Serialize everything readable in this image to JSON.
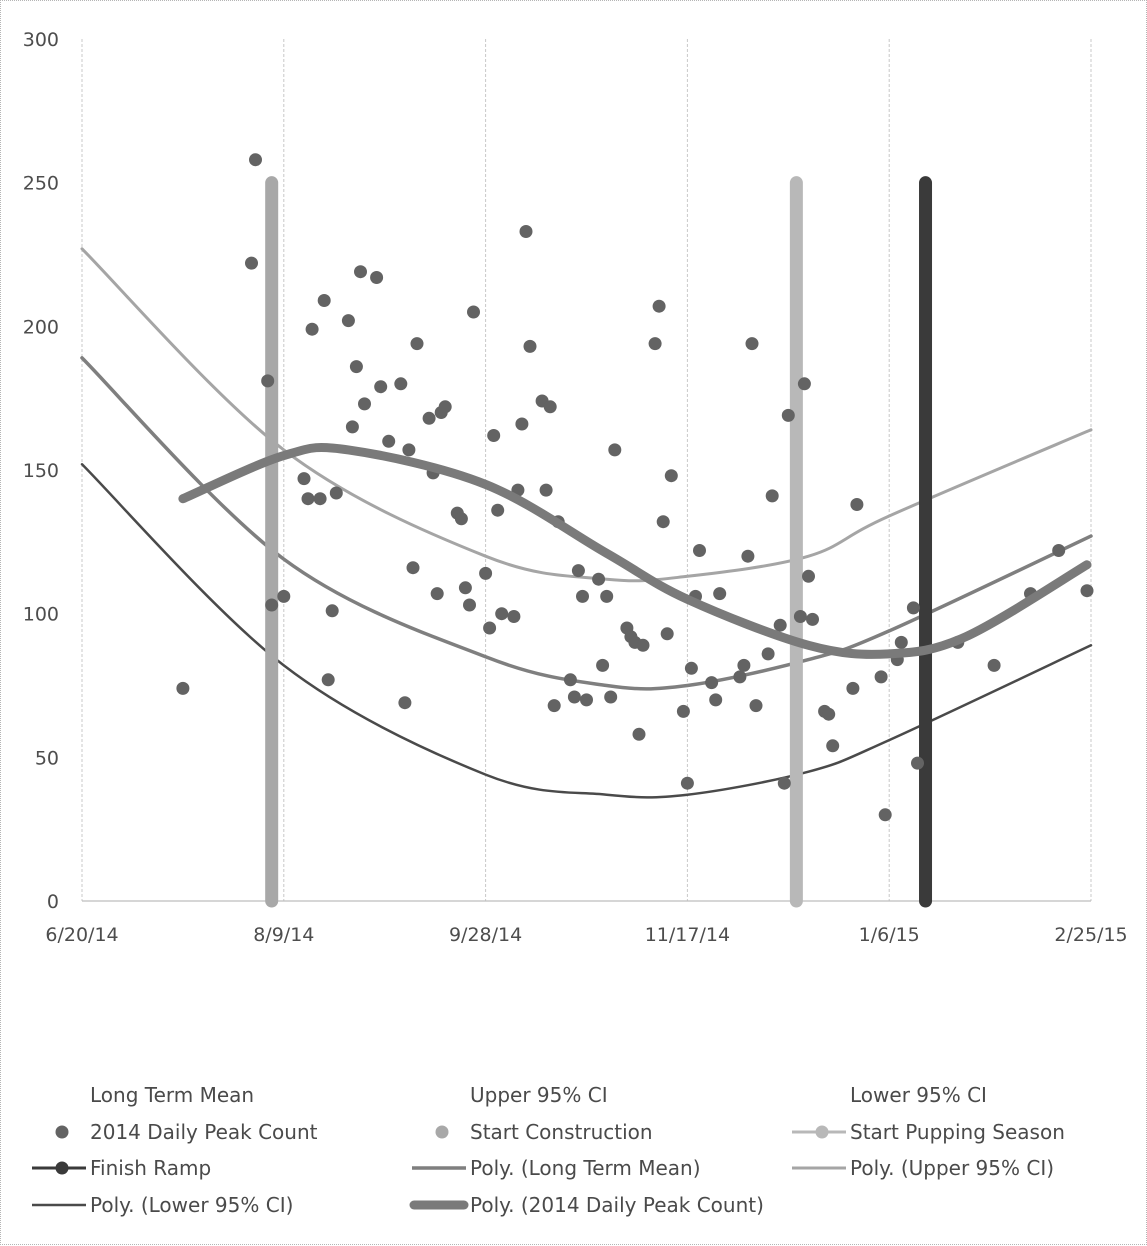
{
  "chart_data": {
    "type": "scatter",
    "title": "",
    "xlabel": "",
    "ylabel": "",
    "x_ticks": [
      "6/20/14",
      "8/9/14",
      "9/28/14",
      "11/17/14",
      "1/6/15",
      "2/25/15"
    ],
    "y_ticks": [
      "0",
      "50",
      "100",
      "150",
      "200",
      "250",
      "300"
    ],
    "xlim": [
      "2014-06-20",
      "2015-02-25"
    ],
    "ylim": [
      0,
      300
    ],
    "grid": "vertical",
    "legend_position": "bottom",
    "colors": {
      "points": "#636363",
      "construction": "#a8a8a8",
      "pupping": "#b8b8b8",
      "ramp": "#3a3a3a",
      "poly_mean": "#7f7f7f",
      "poly_upper": "#a5a5a5",
      "poly_lower": "#4a4a4a",
      "poly_count": "#7a7a7a"
    },
    "series": [
      {
        "name": "2014 Daily Peak Count",
        "kind": "points",
        "points": [
          [
            "2014-07-15",
            74
          ],
          [
            "2014-08-01",
            222
          ],
          [
            "2014-08-02",
            258
          ],
          [
            "2014-08-05",
            181
          ],
          [
            "2014-08-06",
            103
          ],
          [
            "2014-08-09",
            106
          ],
          [
            "2014-08-14",
            147
          ],
          [
            "2014-08-15",
            140
          ],
          [
            "2014-08-16",
            199
          ],
          [
            "2014-08-18",
            140
          ],
          [
            "2014-08-19",
            209
          ],
          [
            "2014-08-20",
            77
          ],
          [
            "2014-08-21",
            101
          ],
          [
            "2014-08-22",
            142
          ],
          [
            "2014-08-25",
            202
          ],
          [
            "2014-08-26",
            165
          ],
          [
            "2014-08-27",
            186
          ],
          [
            "2014-08-28",
            219
          ],
          [
            "2014-08-29",
            173
          ],
          [
            "2014-09-01",
            217
          ],
          [
            "2014-09-02",
            179
          ],
          [
            "2014-09-04",
            160
          ],
          [
            "2014-09-07",
            180
          ],
          [
            "2014-09-08",
            69
          ],
          [
            "2014-09-09",
            157
          ],
          [
            "2014-09-10",
            116
          ],
          [
            "2014-09-11",
            194
          ],
          [
            "2014-09-14",
            168
          ],
          [
            "2014-09-15",
            149
          ],
          [
            "2014-09-16",
            107
          ],
          [
            "2014-09-17",
            170
          ],
          [
            "2014-09-18",
            172
          ],
          [
            "2014-09-21",
            135
          ],
          [
            "2014-09-22",
            133
          ],
          [
            "2014-09-23",
            109
          ],
          [
            "2014-09-24",
            103
          ],
          [
            "2014-09-25",
            205
          ],
          [
            "2014-09-28",
            114
          ],
          [
            "2014-09-29",
            95
          ],
          [
            "2014-09-30",
            162
          ],
          [
            "2014-10-01",
            136
          ],
          [
            "2014-10-02",
            100
          ],
          [
            "2014-10-05",
            99
          ],
          [
            "2014-10-06",
            143
          ],
          [
            "2014-10-07",
            166
          ],
          [
            "2014-10-08",
            233
          ],
          [
            "2014-10-09",
            193
          ],
          [
            "2014-10-12",
            174
          ],
          [
            "2014-10-13",
            143
          ],
          [
            "2014-10-14",
            172
          ],
          [
            "2014-10-15",
            68
          ],
          [
            "2014-10-16",
            132
          ],
          [
            "2014-10-19",
            77
          ],
          [
            "2014-10-20",
            71
          ],
          [
            "2014-10-21",
            115
          ],
          [
            "2014-10-22",
            106
          ],
          [
            "2014-10-23",
            70
          ],
          [
            "2014-10-26",
            112
          ],
          [
            "2014-10-27",
            82
          ],
          [
            "2014-10-28",
            106
          ],
          [
            "2014-10-29",
            71
          ],
          [
            "2014-10-30",
            157
          ],
          [
            "2014-11-02",
            95
          ],
          [
            "2014-11-03",
            92
          ],
          [
            "2014-11-04",
            90
          ],
          [
            "2014-11-05",
            58
          ],
          [
            "2014-11-06",
            89
          ],
          [
            "2014-11-09",
            194
          ],
          [
            "2014-11-10",
            207
          ],
          [
            "2014-11-11",
            132
          ],
          [
            "2014-11-12",
            93
          ],
          [
            "2014-11-13",
            148
          ],
          [
            "2014-11-16",
            66
          ],
          [
            "2014-11-17",
            41
          ],
          [
            "2014-11-18",
            81
          ],
          [
            "2014-11-19",
            106
          ],
          [
            "2014-11-20",
            122
          ],
          [
            "2014-11-23",
            76
          ],
          [
            "2014-11-24",
            70
          ],
          [
            "2014-11-25",
            107
          ],
          [
            "2014-11-30",
            78
          ],
          [
            "2014-12-01",
            82
          ],
          [
            "2014-12-02",
            120
          ],
          [
            "2014-12-03",
            194
          ],
          [
            "2014-12-04",
            68
          ],
          [
            "2014-12-07",
            86
          ],
          [
            "2014-12-08",
            141
          ],
          [
            "2014-12-10",
            96
          ],
          [
            "2014-12-11",
            41
          ],
          [
            "2014-12-12",
            169
          ],
          [
            "2014-12-15",
            99
          ],
          [
            "2014-12-16",
            180
          ],
          [
            "2014-12-17",
            113
          ],
          [
            "2014-12-18",
            98
          ],
          [
            "2014-12-21",
            66
          ],
          [
            "2014-12-22",
            65
          ],
          [
            "2014-12-23",
            54
          ],
          [
            "2014-12-28",
            74
          ],
          [
            "2014-12-29",
            138
          ],
          [
            "2015-01-04",
            78
          ],
          [
            "2015-01-05",
            30
          ],
          [
            "2015-01-08",
            84
          ],
          [
            "2015-01-09",
            90
          ],
          [
            "2015-01-12",
            102
          ],
          [
            "2015-01-13",
            48
          ],
          [
            "2015-01-23",
            90
          ],
          [
            "2015-02-01",
            82
          ],
          [
            "2015-02-10",
            107
          ],
          [
            "2015-02-17",
            122
          ],
          [
            "2015-02-24",
            108
          ]
        ]
      },
      {
        "name": "Start Construction",
        "kind": "vline",
        "x": "2014-08-06",
        "y": [
          0,
          250
        ]
      },
      {
        "name": "Start Pupping Season",
        "kind": "vline",
        "x": "2014-12-14",
        "y": [
          0,
          250
        ]
      },
      {
        "name": "Finish Ramp",
        "kind": "vline",
        "x": "2015-01-15",
        "y": [
          0,
          250
        ]
      },
      {
        "name": "Poly. (Long Term Mean)",
        "kind": "curve",
        "points": [
          [
            "2014-06-20",
            189
          ],
          [
            "2014-08-09",
            119
          ],
          [
            "2014-09-28",
            85
          ],
          [
            "2014-10-28",
            75
          ],
          [
            "2014-11-17",
            75
          ],
          [
            "2014-12-17",
            84
          ],
          [
            "2015-01-06",
            94
          ],
          [
            "2015-02-25",
            127
          ]
        ]
      },
      {
        "name": "Poly. (Upper 95% CI)",
        "kind": "curve",
        "points": [
          [
            "2014-06-20",
            227
          ],
          [
            "2014-08-09",
            157
          ],
          [
            "2014-09-28",
            120
          ],
          [
            "2014-10-28",
            112
          ],
          [
            "2014-11-17",
            113
          ],
          [
            "2014-12-17",
            120
          ],
          [
            "2015-01-06",
            134
          ],
          [
            "2015-02-25",
            164
          ]
        ]
      },
      {
        "name": "Poly. (Lower 95% CI)",
        "kind": "curve",
        "points": [
          [
            "2014-06-20",
            152
          ],
          [
            "2014-08-09",
            82
          ],
          [
            "2014-09-28",
            44
          ],
          [
            "2014-10-28",
            37
          ],
          [
            "2014-11-17",
            37
          ],
          [
            "2014-12-17",
            45
          ],
          [
            "2015-01-06",
            56
          ],
          [
            "2015-02-25",
            89
          ]
        ]
      },
      {
        "name": "Poly. (2014 Daily Peak Count)",
        "kind": "curve",
        "points": [
          [
            "2014-07-15",
            140
          ],
          [
            "2014-08-09",
            155
          ],
          [
            "2014-08-25",
            157
          ],
          [
            "2014-09-28",
            145
          ],
          [
            "2014-10-28",
            121
          ],
          [
            "2014-11-17",
            105
          ],
          [
            "2014-12-17",
            89
          ],
          [
            "2015-01-06",
            86
          ],
          [
            "2015-01-25",
            92
          ],
          [
            "2015-02-24",
            117
          ]
        ]
      }
    ],
    "legend": [
      {
        "label": "Long Term Mean",
        "marker": "none"
      },
      {
        "label": "Upper 95% CI",
        "marker": "none"
      },
      {
        "label": "Lower 95% CI",
        "marker": "none"
      },
      {
        "label": "2014 Daily Peak Count",
        "marker": "dot"
      },
      {
        "label": "Start Construction",
        "marker": "dot-light"
      },
      {
        "label": "Start Pupping Season",
        "marker": "line-dot-light"
      },
      {
        "label": "Finish Ramp",
        "marker": "line-dot-dark"
      },
      {
        "label": "Poly. (Long Term Mean)",
        "marker": "line-mean"
      },
      {
        "label": "Poly. (Upper 95% CI)",
        "marker": "line-upper"
      },
      {
        "label": "Poly. (Lower 95% CI)",
        "marker": "line-lower"
      },
      {
        "label": "Poly. (2014 Daily Peak Count)",
        "marker": "line-thick"
      }
    ]
  }
}
